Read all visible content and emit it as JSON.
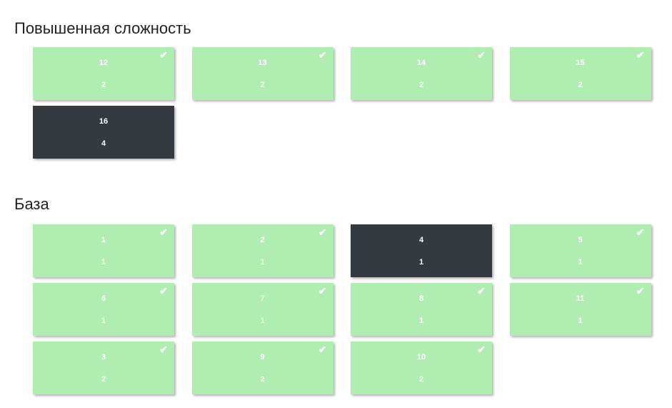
{
  "colors": {
    "done": "#b0edb1",
    "current": "#343a40",
    "text": "#ffffff"
  },
  "sections": [
    {
      "title": "Повышенная сложность",
      "cards": [
        {
          "number": "12",
          "points": "2",
          "status": "done"
        },
        {
          "number": "13",
          "points": "2",
          "status": "done"
        },
        {
          "number": "14",
          "points": "2",
          "status": "done"
        },
        {
          "number": "15",
          "points": "2",
          "status": "done"
        },
        {
          "number": "16",
          "points": "4",
          "status": "current"
        }
      ]
    },
    {
      "title": "База",
      "cards": [
        {
          "number": "1",
          "points": "1",
          "status": "done"
        },
        {
          "number": "2",
          "points": "1",
          "status": "done"
        },
        {
          "number": "4",
          "points": "1",
          "status": "current"
        },
        {
          "number": "5",
          "points": "1",
          "status": "done"
        },
        {
          "number": "6",
          "points": "1",
          "status": "done"
        },
        {
          "number": "7",
          "points": "1",
          "status": "done"
        },
        {
          "number": "8",
          "points": "1",
          "status": "done"
        },
        {
          "number": "11",
          "points": "1",
          "status": "done"
        },
        {
          "number": "3",
          "points": "2",
          "status": "done"
        },
        {
          "number": "9",
          "points": "2",
          "status": "done"
        },
        {
          "number": "10",
          "points": "2",
          "status": "done"
        }
      ]
    }
  ]
}
